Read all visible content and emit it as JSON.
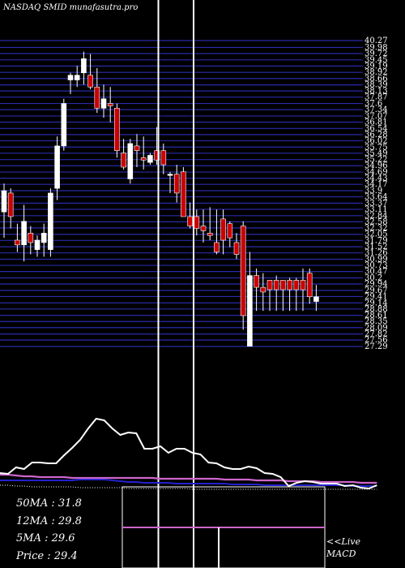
{
  "header": {
    "title": "NASDAQ SMID munafasutra.pro"
  },
  "stats": [
    {
      "label": "50MA",
      "value": ": 31.8"
    },
    {
      "label": "12MA",
      "value": ": 29.8"
    },
    {
      "label": "5MA",
      "value": ": 29.6"
    },
    {
      "label": "Price",
      "value": ": 29.4"
    }
  ],
  "live_label": "<<Live",
  "macd_label": "MACD",
  "colors": {
    "up": "#ffffff",
    "down": "#cc0000",
    "grid": "#2a2aa8",
    "ma_pink": "#cc66cc",
    "ma_blue": "#2222cc"
  },
  "chart_data": {
    "type": "candlestick",
    "price_labels": [
      "40.27",
      "39.98",
      "39.72",
      "39.45",
      "39.19",
      "38.92",
      "38.66",
      "38.39",
      "38.13",
      "37.87",
      "37.6",
      "37.34",
      "37.07",
      "36.81",
      "36.54",
      "36.28",
      "36.02",
      "35.75",
      "35.49",
      "35.22",
      "34.96",
      "34.69",
      "34.43",
      "34.17",
      "33.9",
      "33.64",
      "33.37",
      "33.11",
      "32.84",
      "32.58",
      "32.32",
      "32.05",
      "31.79",
      "31.52",
      "31.26",
      "30.99",
      "30.73",
      "30.47",
      "30.2",
      "29.94",
      "29.67",
      "29.41",
      "29.14",
      "28.88",
      "28.61",
      "28.35",
      "28.09",
      "27.82",
      "27.56",
      "27.29"
    ],
    "ylim": [
      27.29,
      40.27
    ],
    "candles": [
      {
        "o": 33.0,
        "h": 34.2,
        "l": 31.9,
        "c": 33.9
      },
      {
        "o": 33.8,
        "h": 34.0,
        "l": 32.3,
        "c": 32.8
      },
      {
        "o": 31.8,
        "h": 32.5,
        "l": 31.3,
        "c": 31.6
      },
      {
        "o": 31.6,
        "h": 33.3,
        "l": 30.9,
        "c": 32.6
      },
      {
        "o": 32.1,
        "h": 32.4,
        "l": 31.2,
        "c": 31.7
      },
      {
        "o": 31.4,
        "h": 32.0,
        "l": 31.1,
        "c": 31.8
      },
      {
        "o": 31.7,
        "h": 32.5,
        "l": 31.1,
        "c": 32.1
      },
      {
        "o": 31.4,
        "h": 34.0,
        "l": 31.1,
        "c": 33.8
      },
      {
        "o": 34.0,
        "h": 36.2,
        "l": 33.5,
        "c": 35.8
      },
      {
        "o": 35.8,
        "h": 37.8,
        "l": 35.6,
        "c": 37.6
      },
      {
        "o": 38.6,
        "h": 38.9,
        "l": 38.0,
        "c": 38.8
      },
      {
        "o": 38.6,
        "h": 39.2,
        "l": 38.3,
        "c": 38.8
      },
      {
        "o": 38.9,
        "h": 39.8,
        "l": 38.4,
        "c": 39.5
      },
      {
        "o": 38.8,
        "h": 39.7,
        "l": 38.2,
        "c": 38.3
      },
      {
        "o": 38.3,
        "h": 39.1,
        "l": 37.2,
        "c": 37.4
      },
      {
        "o": 37.4,
        "h": 38.4,
        "l": 37.0,
        "c": 37.8
      },
      {
        "o": 37.6,
        "h": 38.3,
        "l": 36.8,
        "c": 37.5
      },
      {
        "o": 37.4,
        "h": 37.6,
        "l": 35.3,
        "c": 35.6
      },
      {
        "o": 35.5,
        "h": 36.1,
        "l": 34.8,
        "c": 34.9
      },
      {
        "o": 34.4,
        "h": 36.1,
        "l": 34.2,
        "c": 35.9
      },
      {
        "o": 35.8,
        "h": 36.3,
        "l": 34.9,
        "c": 35.6
      },
      {
        "o": 35.3,
        "h": 36.2,
        "l": 34.8,
        "c": 35.2
      },
      {
        "o": 35.1,
        "h": 35.5,
        "l": 35.0,
        "c": 35.4
      },
      {
        "o": 35.6,
        "h": 36.6,
        "l": 35.0,
        "c": 35.2
      },
      {
        "o": 35.6,
        "h": 35.9,
        "l": 34.6,
        "c": 35.0
      },
      {
        "o": 34.6,
        "h": 34.7,
        "l": 33.8,
        "c": 34.6
      },
      {
        "o": 34.6,
        "h": 35.0,
        "l": 33.4,
        "c": 33.8
      },
      {
        "o": 34.7,
        "h": 34.9,
        "l": 32.8,
        "c": 32.8
      },
      {
        "o": 32.8,
        "h": 33.4,
        "l": 32.3,
        "c": 32.4
      },
      {
        "o": 32.8,
        "h": 33.1,
        "l": 32.0,
        "c": 32.3
      },
      {
        "o": 32.4,
        "h": 33.1,
        "l": 31.7,
        "c": 32.2
      },
      {
        "o": 32.1,
        "h": 33.2,
        "l": 31.8,
        "c": 32.0
      },
      {
        "o": 31.7,
        "h": 33.1,
        "l": 31.2,
        "c": 31.3
      },
      {
        "o": 32.7,
        "h": 33.1,
        "l": 31.2,
        "c": 31.8
      },
      {
        "o": 32.5,
        "h": 32.6,
        "l": 31.5,
        "c": 31.9
      },
      {
        "o": 31.7,
        "h": 32.1,
        "l": 31.0,
        "c": 31.2
      },
      {
        "o": 32.4,
        "h": 32.6,
        "l": 28.0,
        "c": 28.6
      },
      {
        "o": 27.3,
        "h": 31.3,
        "l": 27.3,
        "c": 30.3
      },
      {
        "o": 30.3,
        "h": 30.6,
        "l": 28.8,
        "c": 29.8
      },
      {
        "o": 29.8,
        "h": 30.4,
        "l": 28.8,
        "c": 29.6
      },
      {
        "o": 30.1,
        "h": 30.1,
        "l": 28.8,
        "c": 29.7
      },
      {
        "o": 30.1,
        "h": 30.3,
        "l": 28.8,
        "c": 29.7
      },
      {
        "o": 30.1,
        "h": 30.1,
        "l": 28.8,
        "c": 29.7
      },
      {
        "o": 30.1,
        "h": 30.2,
        "l": 28.8,
        "c": 29.7
      },
      {
        "o": 30.1,
        "h": 30.2,
        "l": 28.8,
        "c": 29.7
      },
      {
        "o": 30.1,
        "h": 30.6,
        "l": 28.8,
        "c": 29.7
      },
      {
        "o": 30.4,
        "h": 30.6,
        "l": 29.1,
        "c": 29.4
      },
      {
        "o": 29.2,
        "h": 29.9,
        "l": 28.8,
        "c": 29.4
      }
    ],
    "indicator_lines": {
      "white": [
        15,
        14,
        22,
        20,
        28,
        28,
        27,
        27,
        37,
        46,
        56,
        70,
        82,
        80,
        70,
        62,
        65,
        64,
        45,
        45,
        48,
        40,
        45,
        45,
        40,
        38,
        28,
        27,
        22,
        20,
        20,
        23,
        21,
        15,
        14,
        10,
        -1,
        3,
        5,
        4,
        2,
        2,
        2,
        -1,
        0,
        -3,
        -4,
        0
      ],
      "pink": [
        13,
        13,
        12,
        11,
        11,
        10,
        10,
        10,
        10,
        9,
        9,
        9,
        9,
        9,
        9,
        9,
        9,
        9,
        9,
        9,
        8,
        8,
        8,
        8,
        8,
        8,
        8,
        8,
        7,
        7,
        7,
        7,
        6,
        6,
        6,
        6,
        5,
        5,
        5,
        5,
        4,
        4,
        4,
        4,
        4,
        3,
        3,
        3
      ],
      "blue": [
        6,
        6,
        6,
        6,
        6,
        6,
        6,
        6,
        6,
        6,
        7,
        7,
        7,
        7,
        6,
        5,
        4,
        4,
        3,
        3,
        3,
        3,
        2,
        2,
        2,
        2,
        2,
        2,
        2,
        1,
        1,
        1,
        1,
        0,
        0,
        0,
        0,
        0,
        0,
        0,
        0,
        0,
        0,
        0,
        -1,
        -1,
        -1,
        -1
      ],
      "dots": [
        0,
        0,
        -1,
        -1,
        -2,
        -2,
        -2,
        -2,
        -2,
        -2,
        -3,
        -3,
        -3,
        -3,
        -3,
        -3,
        -4,
        -4,
        -4,
        -4,
        -4,
        -4,
        -4,
        -4,
        -5,
        -5,
        -5,
        -5,
        -5,
        -5,
        -5,
        -5,
        -5,
        -5,
        -5,
        -5,
        -5,
        -5,
        -5,
        -5,
        -5,
        -5,
        -5,
        -5,
        -5,
        -5,
        -5,
        -5
      ]
    },
    "macd": {
      "macd_line": 0.25
    }
  }
}
